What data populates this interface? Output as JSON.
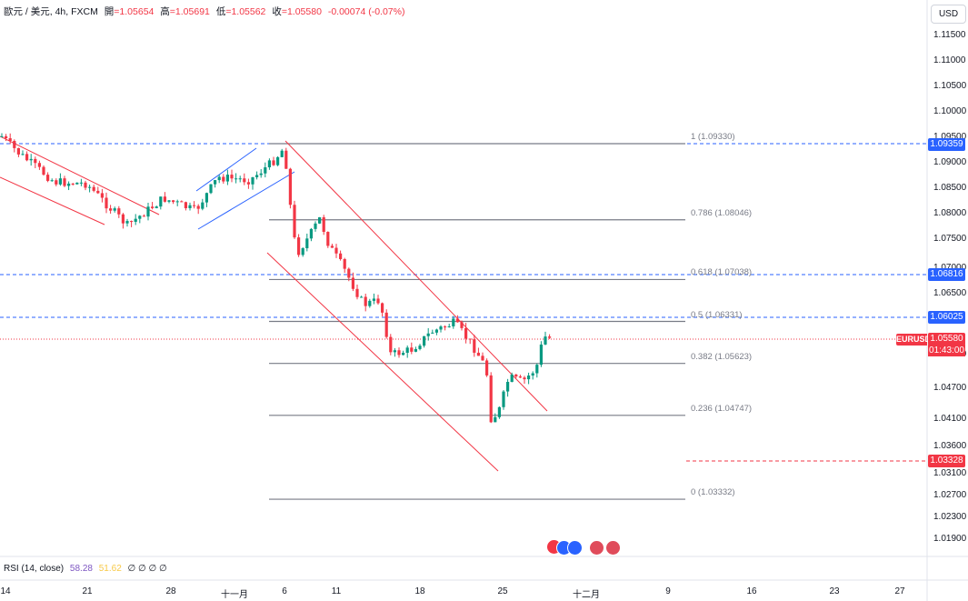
{
  "header": {
    "symbol": "歐元 / 美元, 4h, FXCM",
    "open_label": "開",
    "open": "=1.05654",
    "high_label": "高",
    "high": "=1.05691",
    "low_label": "低",
    "low": "=1.05562",
    "close_label": "收",
    "close": "=1.05580",
    "change": "-0.00074 (-0.07%)"
  },
  "currency_button": "USD",
  "price_axis": [
    "1.11500",
    "1.11000",
    "1.10500",
    "1.10000",
    "1.09500",
    "1.09000",
    "1.08500",
    "1.08000",
    "1.07500",
    "1.07000",
    "1.06500",
    "1.05500",
    "1.04700",
    "1.04100",
    "1.03600",
    "1.03100",
    "1.02700",
    "1.02300",
    "1.01900"
  ],
  "price_labels": {
    "line1": "1.09359",
    "line2": "1.06816",
    "line3": "1.06025",
    "last": "1.05580",
    "low": "1.03328"
  },
  "symbol_tag": "EURUSD",
  "countdown": "01:43:00",
  "fib_levels": [
    {
      "label": "1 (1.09330)",
      "price": 1.0933
    },
    {
      "label": "0.786 (1.08046)",
      "price": 1.08046
    },
    {
      "label": "0.618 (1.07038)",
      "price": 1.07038
    },
    {
      "label": "0.5 (1.06331)",
      "price": 1.06331
    },
    {
      "label": "0.382 (1.05623)",
      "price": 1.05623
    },
    {
      "label": "0.236 (1.04747)",
      "price": 1.04747
    },
    {
      "label": "0 (1.03332)",
      "price": 1.03332
    }
  ],
  "time_axis": [
    "14",
    "21",
    "28",
    "十一月",
    "6",
    "11",
    "18",
    "25",
    "十二月",
    "9",
    "16",
    "23",
    "27"
  ],
  "rsi": {
    "label": "RSI (14, close)",
    "value1": "58.28",
    "value2": "51.62",
    "rest": "∅ ∅ ∅ ∅"
  },
  "colors": {
    "up": "#089981",
    "down": "#f23645",
    "hline": "#2962ff",
    "fib": "#787b86",
    "channel": "#f23645",
    "channel_blue": "#2962ff"
  }
}
